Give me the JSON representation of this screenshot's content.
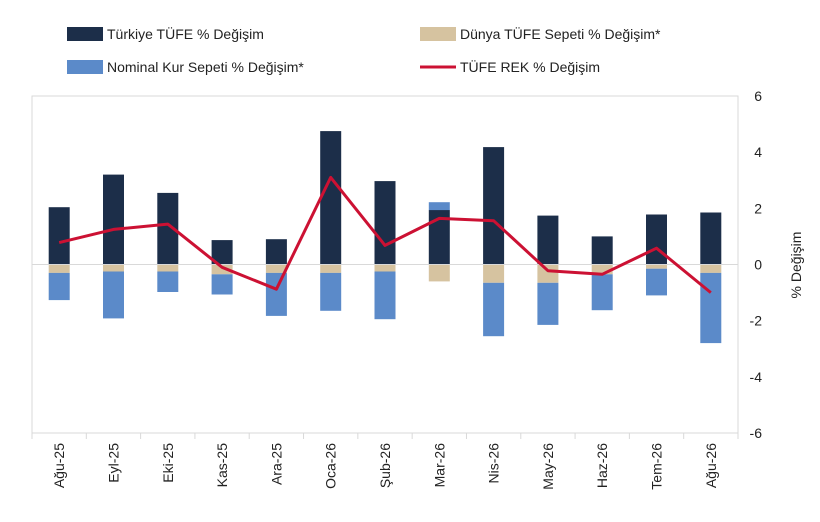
{
  "chart_data": {
    "type": "bar",
    "categories": [
      "Ağu-25",
      "Eyl-25",
      "Eki-25",
      "Kas-25",
      "Ara-25",
      "Oca-26",
      "Şub-26",
      "Mar-26",
      "Nis-26",
      "May-26",
      "Haz-26",
      "Tem-26",
      "Ağu-26"
    ],
    "series": [
      {
        "name": "Türkiye TÜFE % Değişim",
        "kind": "bar",
        "color": "#1c2e49",
        "values": [
          2.04,
          3.2,
          2.55,
          0.87,
          0.9,
          4.75,
          2.97,
          1.94,
          4.18,
          1.74,
          1.0,
          1.78,
          1.85
        ]
      },
      {
        "name": "Dünya TÜFE Sepeti % Değişim*",
        "kind": "bar",
        "color": "#d6c3a0",
        "values": [
          -0.3,
          -0.25,
          -0.25,
          -0.35,
          -0.3,
          -0.3,
          -0.25,
          -0.6,
          -0.65,
          -0.65,
          -0.35,
          -0.15,
          -0.3
        ]
      },
      {
        "name": "Nominal Kur Sepeti % Değişim*",
        "kind": "bar",
        "color": "#5b8ac9",
        "values": [
          -0.97,
          -1.67,
          -0.73,
          -0.72,
          -1.53,
          -1.35,
          -1.7,
          0.28,
          -1.9,
          -1.5,
          -1.28,
          -0.95,
          -2.5
        ]
      },
      {
        "name": "TÜFE REK % Değişim",
        "kind": "line",
        "color": "#cc1133",
        "values": [
          0.78,
          1.25,
          1.44,
          -0.1,
          -0.88,
          3.1,
          0.68,
          1.64,
          1.56,
          -0.22,
          -0.35,
          0.58,
          -1.0
        ]
      }
    ],
    "y_ticks": [
      "6",
      "4",
      "2",
      "0",
      "-2",
      "-4",
      "-6"
    ],
    "ylim": [
      -6,
      6
    ],
    "ylabel": "% Değişim",
    "y_axis_side": "right",
    "legend": "top",
    "grid": false
  }
}
